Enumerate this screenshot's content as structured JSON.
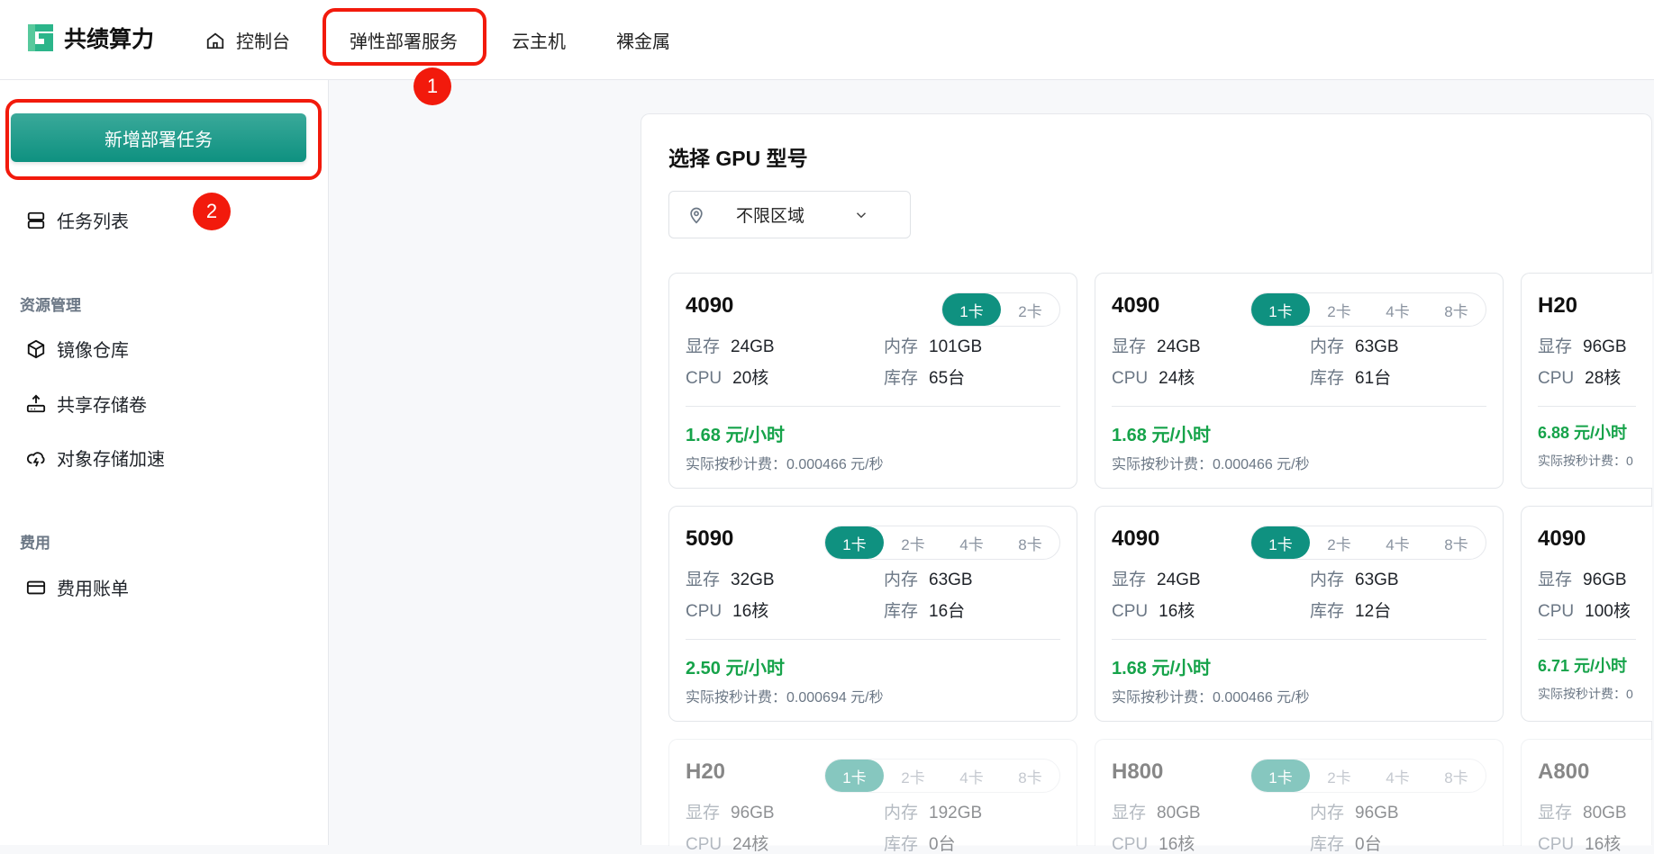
{
  "header": {
    "brand": "共绩算力",
    "nav": [
      {
        "label": "控制台",
        "icon": "home-icon"
      },
      {
        "label": "弹性部署服务"
      },
      {
        "label": "云主机"
      },
      {
        "label": "裸金属"
      }
    ]
  },
  "sidebar": {
    "new_button": "新增部署任务",
    "task_list": "任务列表",
    "sections": [
      {
        "title": "资源管理",
        "items": [
          "镜像仓库",
          "共享存储卷",
          "对象存储加速"
        ]
      },
      {
        "title": "费用",
        "items": [
          "费用账单"
        ]
      }
    ]
  },
  "main": {
    "title": "选择 GPU 型号",
    "region": "不限区域",
    "labels": {
      "vram": "显存",
      "mem": "内存",
      "cpu": "CPU",
      "stock": "库存"
    },
    "cards": [
      {
        "name": "4090",
        "options": [
          "1卡",
          "2卡"
        ],
        "vram": "24GB",
        "mem": "101GB",
        "cpu": "20核",
        "stock": "65台",
        "price": "1.68 元/小时",
        "persec": "实际按秒计费：0.000466 元/秒"
      },
      {
        "name": "4090",
        "options": [
          "1卡",
          "2卡",
          "4卡",
          "8卡"
        ],
        "vram": "24GB",
        "mem": "63GB",
        "cpu": "24核",
        "stock": "61台",
        "price": "1.68 元/小时",
        "persec": "实际按秒计费：0.000466 元/秒"
      },
      {
        "name": "H20",
        "vram": "96GB",
        "cpu": "28核",
        "price": "6.88 元/小时",
        "persec": "实际按秒计费：0"
      },
      {
        "name": "5090",
        "options": [
          "1卡",
          "2卡",
          "4卡",
          "8卡"
        ],
        "vram": "32GB",
        "mem": "63GB",
        "cpu": "16核",
        "stock": "16台",
        "price": "2.50 元/小时",
        "persec": "实际按秒计费：0.000694 元/秒"
      },
      {
        "name": "4090",
        "options": [
          "1卡",
          "2卡",
          "4卡",
          "8卡"
        ],
        "vram": "24GB",
        "mem": "63GB",
        "cpu": "16核",
        "stock": "12台",
        "price": "1.68 元/小时",
        "persec": "实际按秒计费：0.000466 元/秒"
      },
      {
        "name": "4090",
        "vram": "96GB",
        "cpu": "100核",
        "price": "6.71 元/小时",
        "persec": "实际按秒计费：0"
      },
      {
        "name": "H20",
        "options": [
          "1卡",
          "2卡",
          "4卡",
          "8卡"
        ],
        "vram": "96GB",
        "mem": "192GB",
        "cpu": "24核",
        "stock": "0台",
        "faded": true
      },
      {
        "name": "H800",
        "options": [
          "1卡",
          "2卡",
          "4卡",
          "8卡"
        ],
        "vram": "80GB",
        "mem": "96GB",
        "cpu": "16核",
        "stock": "0台",
        "faded": true
      },
      {
        "name": "A800",
        "vram": "80GB",
        "cpu": "16核",
        "faded": true
      }
    ]
  },
  "annotations": [
    "1",
    "2"
  ],
  "colors": {
    "accent": "#0f9180",
    "price": "#16a34a",
    "annotation": "#f21a0c"
  }
}
